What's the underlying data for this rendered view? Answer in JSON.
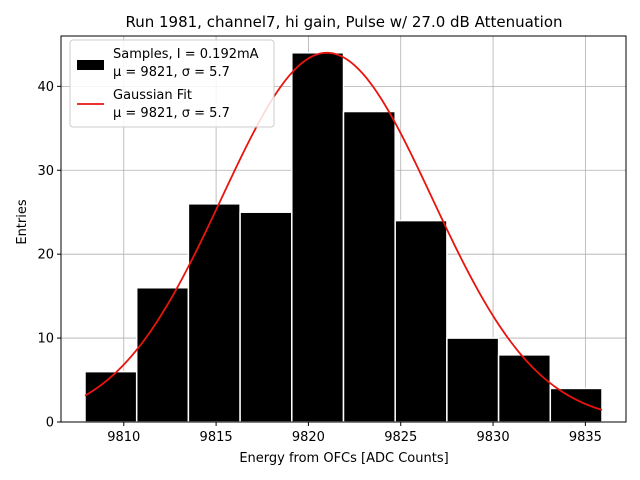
{
  "chart_data": {
    "type": "bar",
    "title": "Run 1981, channel7, hi gain, Pulse w/ 27.0 dB Attenuation",
    "xlabel": "Energy from OFCs [ADC Counts]",
    "ylabel": "Entries",
    "xlim": [
      9806.6,
      9837.2
    ],
    "ylim": [
      0,
      46
    ],
    "xticks": [
      9810,
      9815,
      9820,
      9825,
      9830,
      9835
    ],
    "yticks": [
      0,
      10,
      20,
      30,
      40
    ],
    "grid": true,
    "bin_edges": [
      9807.9,
      9810.7,
      9813.5,
      9816.3,
      9819.1,
      9821.9,
      9824.7,
      9827.5,
      9830.3,
      9833.1,
      9835.9
    ],
    "values": [
      6,
      16,
      26,
      25,
      44,
      37,
      24,
      10,
      8,
      4
    ],
    "bar_color": "#000000",
    "fit": {
      "type": "gaussian",
      "mu": 9821,
      "sigma": 5.7,
      "amplitude": 44,
      "x_range": [
        9807.9,
        9835.9
      ],
      "color": "#e8140e"
    },
    "legend": {
      "placement": "top-left",
      "entries": [
        {
          "kind": "patch",
          "line1": "Samples, I = 0.192mA",
          "line2": "μ = 9821, σ = 5.7"
        },
        {
          "kind": "line",
          "line1": "Gaussian Fit",
          "line2": "μ = 9821, σ = 5.7"
        }
      ]
    }
  }
}
